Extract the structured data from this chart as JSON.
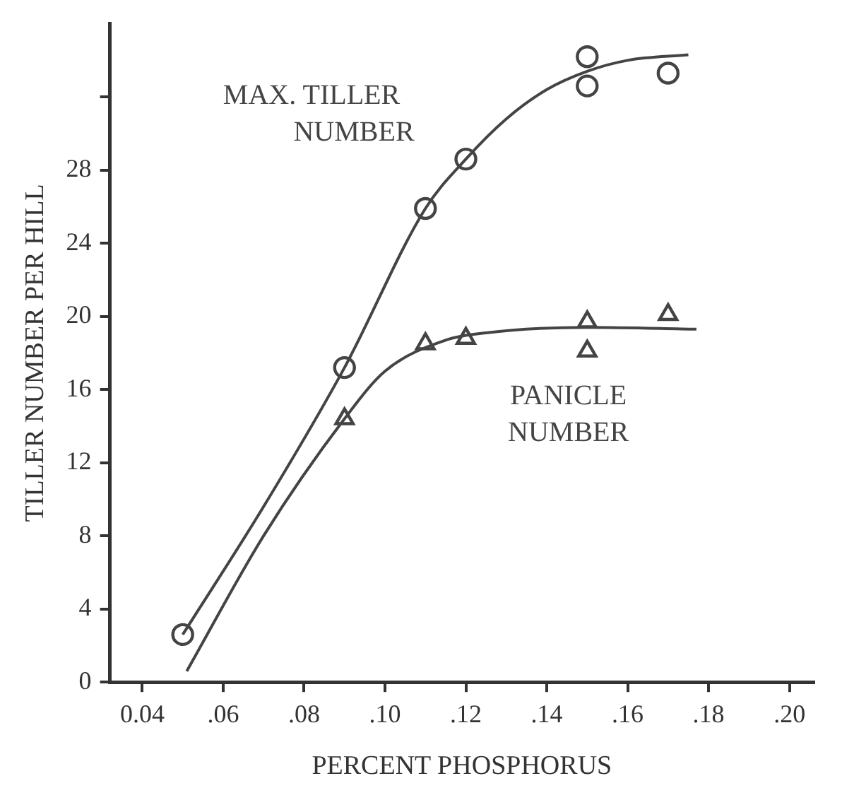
{
  "chart_data": {
    "type": "scatter",
    "xlabel": "PERCENT PHOSPHORUS",
    "ylabel": "TILLER NUMBER PER HILL",
    "xlim": [
      0.032,
      0.206
    ],
    "ylim": [
      0,
      36
    ],
    "xticks": [
      {
        "value": 0.04,
        "label": "0.04"
      },
      {
        "value": 0.06,
        "label": ".06"
      },
      {
        "value": 0.08,
        "label": ".08"
      },
      {
        "value": 0.1,
        "label": ".10"
      },
      {
        "value": 0.12,
        "label": ".12"
      },
      {
        "value": 0.14,
        "label": ".14"
      },
      {
        "value": 0.16,
        "label": ".16"
      },
      {
        "value": 0.18,
        "label": ".18"
      },
      {
        "value": 0.2,
        "label": ".20"
      }
    ],
    "yticks": [
      0,
      4,
      8,
      12,
      16,
      20,
      24,
      28,
      {
        "value": 32,
        "label": null
      }
    ],
    "grid": false,
    "legend": false,
    "series": [
      {
        "name": "MAX. TILLER NUMBER",
        "marker": "circle",
        "color": "#444444",
        "x": [
          0.05,
          0.09,
          0.11,
          0.12,
          0.15,
          0.15,
          0.17
        ],
        "values": [
          2.6,
          17.2,
          25.9,
          28.6,
          34.2,
          32.6,
          33.3
        ]
      },
      {
        "name": "PANICLE NUMBER",
        "marker": "triangle",
        "color": "#444444",
        "x": [
          0.09,
          0.11,
          0.12,
          0.15,
          0.15,
          0.17
        ],
        "values": [
          14.4,
          18.5,
          18.8,
          19.7,
          18.1,
          20.1
        ]
      },
      {
        "type": "line",
        "marker": "none",
        "line_style": "solid",
        "color": "#444444",
        "x": [
          0.05,
          0.07,
          0.09,
          0.11,
          0.12,
          0.13,
          0.14,
          0.15,
          0.16,
          0.175
        ],
        "values": [
          2.6,
          9.6,
          17.2,
          25.9,
          28.6,
          30.8,
          32.4,
          33.4,
          34.0,
          34.3
        ]
      },
      {
        "type": "line",
        "marker": "none",
        "line_style": "solid",
        "color": "#444444",
        "x": [
          0.051,
          0.07,
          0.09,
          0.1,
          0.115,
          0.125,
          0.15,
          0.177
        ],
        "values": [
          0.6,
          8.0,
          14.4,
          17.0,
          18.7,
          19.1,
          19.4,
          19.3
        ]
      }
    ]
  }
}
